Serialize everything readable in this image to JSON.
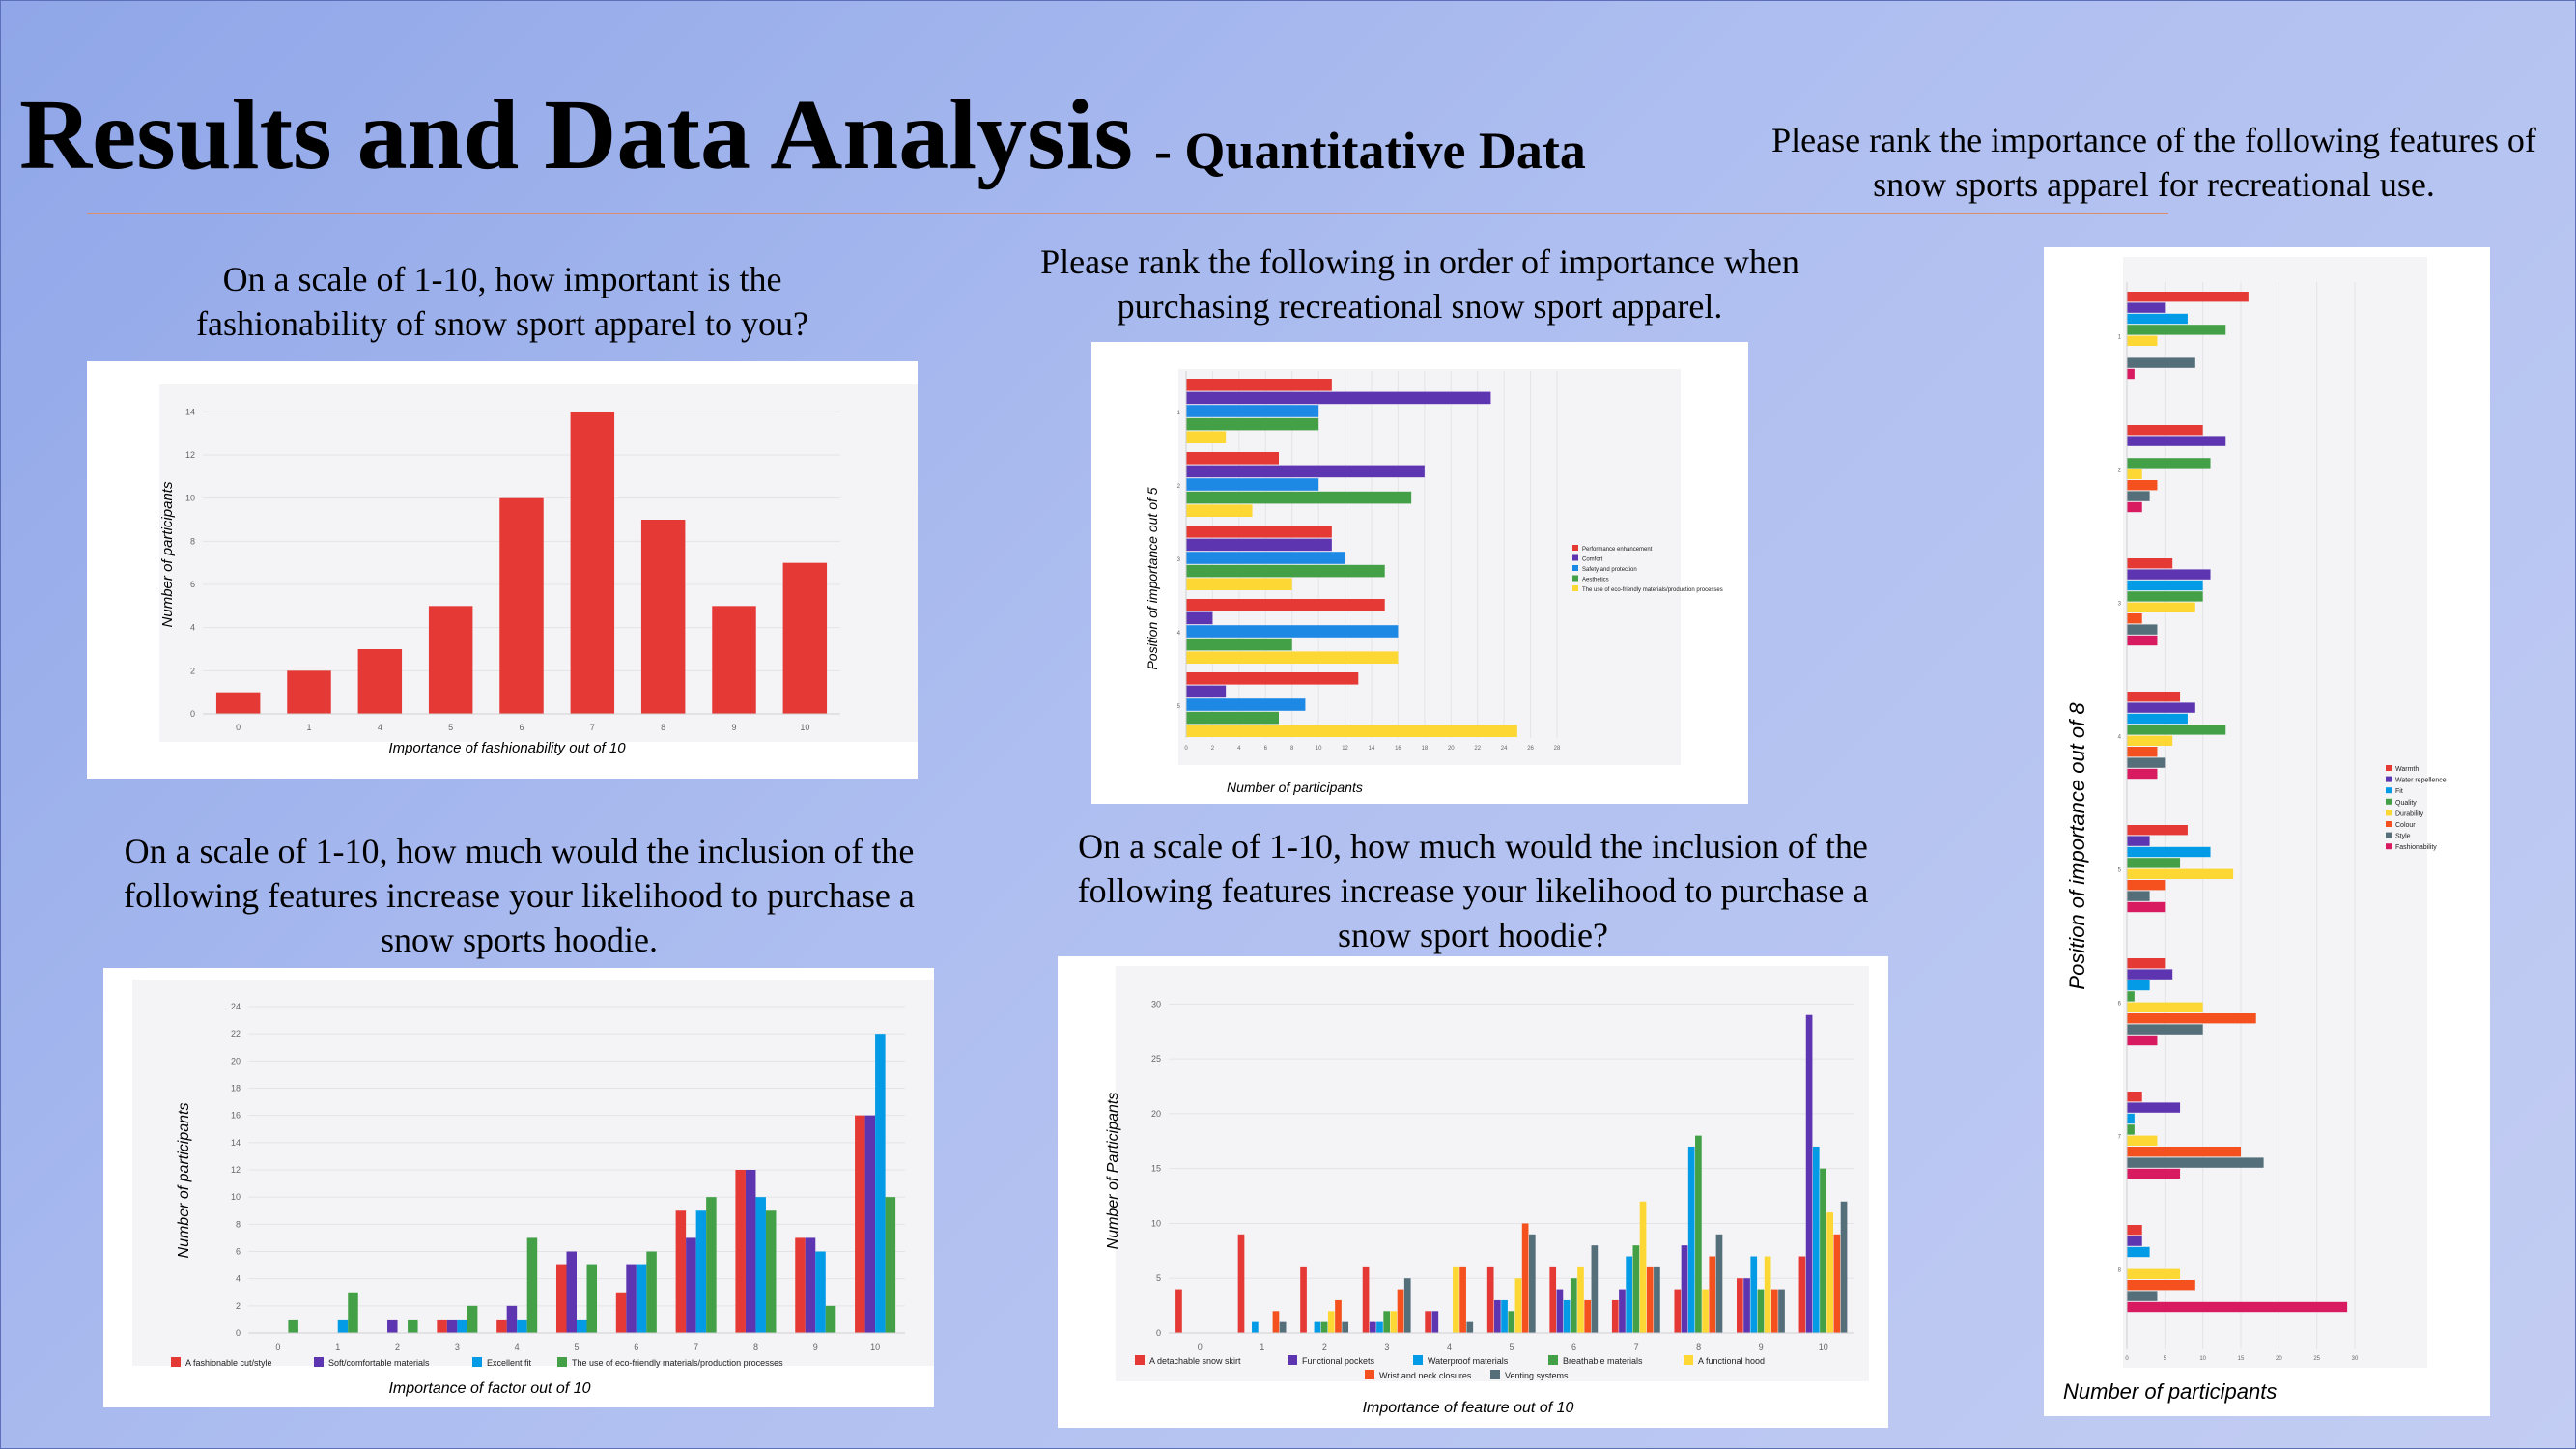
{
  "header": {
    "title": "Results and Data Analysis",
    "subtitle": "- Quantitative Data"
  },
  "questions": {
    "fashion": "On a scale of 1-10, how important is the fashionability of snow sport apparel to you?",
    "rank5": "Please rank the following in order of importance when purchasing recreational snow sport apparel.",
    "rank8": "Please rank the importance of the following features of snow sports apparel for recreational use.",
    "factors": "On a scale of 1-10, how much would the inclusion of the following features increase your likelihood to purchase a snow sports hoodie.",
    "features": "On a scale of 1-10, how much would the inclusion of the following features increase your likelihood to purchase a snow sport hoodie?"
  },
  "chart_data": [
    {
      "id": "fashion",
      "type": "bar",
      "xlabel": "Importance of fashionability out of 10",
      "ylabel": "Number of participants",
      "ylim": [
        0,
        15
      ],
      "yticks": [
        0,
        2,
        4,
        6,
        8,
        10,
        12,
        14
      ],
      "categories": [
        "0",
        "1",
        "4",
        "5",
        "6",
        "7",
        "8",
        "9",
        "10"
      ],
      "values": [
        1,
        2,
        3,
        5,
        10,
        14,
        9,
        5,
        7
      ],
      "color": "#e53935",
      "grid": true
    },
    {
      "id": "rank5",
      "type": "bar",
      "orientation": "horizontal",
      "xlabel": "Number of participants",
      "ylabel": "Position of importance out of 5",
      "xlim": [
        0,
        28
      ],
      "xticks": [
        0,
        2,
        4,
        6,
        8,
        10,
        12,
        14,
        16,
        18,
        20,
        22,
        24,
        26,
        28
      ],
      "categories": [
        "1",
        "2",
        "3",
        "4",
        "5"
      ],
      "legend": "right",
      "series": [
        {
          "name": "Performance enhancement",
          "color": "#e53935",
          "values": [
            11,
            7,
            11,
            15,
            13
          ]
        },
        {
          "name": "Comfort",
          "color": "#5e35b1",
          "values": [
            23,
            18,
            11,
            2,
            3
          ]
        },
        {
          "name": "Safety and protection",
          "color": "#1e88e5",
          "values": [
            10,
            10,
            12,
            16,
            9
          ]
        },
        {
          "name": "Aesthetics",
          "color": "#43a047",
          "values": [
            10,
            17,
            15,
            8,
            7
          ]
        },
        {
          "name": "The use of eco-friendly materials/production processes",
          "color": "#fdd835",
          "values": [
            3,
            5,
            8,
            16,
            25
          ]
        }
      ]
    },
    {
      "id": "rank8",
      "type": "bar",
      "orientation": "horizontal",
      "xlabel": "Number of participants",
      "ylabel": "Position of importance out of 8",
      "xlim": [
        0,
        30
      ],
      "xticks": [
        0,
        5,
        10,
        15,
        20,
        25,
        30
      ],
      "categories": [
        "1",
        "2",
        "3",
        "4",
        "5",
        "6",
        "7",
        "8"
      ],
      "legend": "right",
      "series": [
        {
          "name": "Warmth",
          "color": "#e53935",
          "values": [
            16,
            10,
            6,
            7,
            8,
            5,
            2,
            2
          ]
        },
        {
          "name": "Water repellence",
          "color": "#5e35b1",
          "values": [
            5,
            13,
            11,
            9,
            3,
            6,
            7,
            2
          ]
        },
        {
          "name": "Fit",
          "color": "#039be5",
          "values": [
            8,
            0,
            10,
            8,
            11,
            3,
            1,
            3
          ]
        },
        {
          "name": "Quality",
          "color": "#43a047",
          "values": [
            13,
            11,
            10,
            13,
            7,
            1,
            1,
            0
          ]
        },
        {
          "name": "Durability",
          "color": "#fdd835",
          "values": [
            4,
            2,
            9,
            6,
            14,
            10,
            4,
            7
          ]
        },
        {
          "name": "Colour",
          "color": "#f4511e",
          "values": [
            0,
            4,
            2,
            4,
            5,
            17,
            15,
            9
          ]
        },
        {
          "name": "Style",
          "color": "#546e7a",
          "values": [
            9,
            3,
            4,
            5,
            3,
            10,
            18,
            4
          ]
        },
        {
          "name": "Fashionability",
          "color": "#d81b60",
          "values": [
            1,
            2,
            4,
            4,
            5,
            4,
            7,
            29
          ]
        }
      ]
    },
    {
      "id": "factors",
      "type": "bar",
      "xlabel": "Importance of factor out of 10",
      "ylabel": "Number of participants",
      "ylim": [
        0,
        24
      ],
      "yticks": [
        0,
        2,
        4,
        6,
        8,
        10,
        12,
        14,
        16,
        18,
        20,
        22,
        24
      ],
      "categories": [
        "0",
        "1",
        "2",
        "3",
        "4",
        "5",
        "6",
        "7",
        "8",
        "9",
        "10"
      ],
      "legend": "bottom",
      "series": [
        {
          "name": "A fashionable cut/style",
          "color": "#e53935",
          "values": [
            0,
            0,
            0,
            1,
            1,
            5,
            3,
            9,
            12,
            7,
            16
          ]
        },
        {
          "name": "Soft/comfortable materials",
          "color": "#5e35b1",
          "values": [
            0,
            0,
            1,
            1,
            2,
            6,
            5,
            7,
            12,
            7,
            16
          ]
        },
        {
          "name": "Excellent fit",
          "color": "#039be5",
          "values": [
            0,
            1,
            0,
            1,
            1,
            1,
            5,
            9,
            10,
            6,
            22
          ]
        },
        {
          "name": "The use of eco-friendly materials/production processes",
          "color": "#43a047",
          "values": [
            1,
            3,
            1,
            2,
            7,
            5,
            6,
            10,
            9,
            2,
            10
          ]
        }
      ]
    },
    {
      "id": "features",
      "type": "bar",
      "xlabel": "Importance of feature out of 10",
      "ylabel": "Number of Participants",
      "ylim": [
        0,
        31
      ],
      "yticks": [
        0,
        5,
        10,
        15,
        20,
        25,
        30
      ],
      "categories": [
        "0",
        "1",
        "2",
        "3",
        "4",
        "5",
        "6",
        "7",
        "8",
        "9",
        "10"
      ],
      "legend": "bottom",
      "series": [
        {
          "name": "A detachable snow skirt",
          "color": "#e53935",
          "values": [
            4,
            9,
            6,
            6,
            2,
            6,
            6,
            3,
            4,
            5,
            7
          ]
        },
        {
          "name": "Functional pockets",
          "color": "#5e35b1",
          "values": [
            0,
            0,
            0,
            1,
            2,
            3,
            4,
            4,
            8,
            5,
            29
          ]
        },
        {
          "name": "Waterproof materials",
          "color": "#039be5",
          "values": [
            0,
            1,
            1,
            1,
            0,
            3,
            3,
            7,
            17,
            7,
            17
          ]
        },
        {
          "name": "Breathable materials",
          "color": "#43a047",
          "values": [
            0,
            0,
            1,
            2,
            0,
            2,
            5,
            8,
            18,
            4,
            15
          ]
        },
        {
          "name": "A functional hood",
          "color": "#fdd835",
          "values": [
            0,
            0,
            2,
            2,
            6,
            5,
            6,
            12,
            4,
            7,
            11
          ]
        },
        {
          "name": "Wrist and neck closures",
          "color": "#f4511e",
          "values": [
            0,
            2,
            3,
            4,
            6,
            10,
            3,
            6,
            7,
            4,
            9
          ]
        },
        {
          "name": "Venting systems",
          "color": "#546e7a",
          "values": [
            0,
            1,
            1,
            5,
            1,
            9,
            8,
            6,
            9,
            4,
            12
          ]
        }
      ]
    }
  ]
}
